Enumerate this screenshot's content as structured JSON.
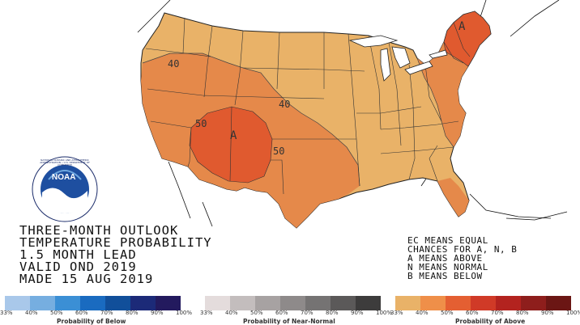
{
  "title_lines": [
    "THREE-MONTH OUTLOOK",
    "TEMPERATURE PROBABILITY",
    "1.5 MONTH LEAD",
    "VALID OND 2019",
    "MADE 15 AUG 2019"
  ],
  "legend_text": [
    "EC MEANS EQUAL",
    "CHANCES FOR A, N, B",
    "A MEANS ABOVE",
    "N MEANS NORMAL",
    "B MEANS BELOW"
  ],
  "contour_labels": [
    "40",
    "50",
    "40",
    "50",
    "A",
    "A"
  ],
  "logo": {
    "name": "NOAA",
    "ring_text": "NATIONAL OCEANIC AND ATMOSPHERIC ADMINISTRATION • U.S. DEPARTMENT OF COMMERCE"
  },
  "colorbars": [
    {
      "label": "Probability of Below",
      "ticks": [
        "33%",
        "40%",
        "50%",
        "60%",
        "70%",
        "80%",
        "90%",
        "100%"
      ],
      "colors": [
        "#a9c8ea",
        "#76aee0",
        "#3b8fd5",
        "#1a6bc0",
        "#114f9a",
        "#1c2a78",
        "#231a5e"
      ]
    },
    {
      "label": "Probability of Near-Normal",
      "ticks": [
        "33%",
        "40%",
        "50%",
        "60%",
        "70%",
        "80%",
        "90%",
        "100%"
      ],
      "colors": [
        "#e4dcdc",
        "#c3bdbd",
        "#a7a2a2",
        "#8e8a8a",
        "#757373",
        "#5b5959",
        "#3d3c3c"
      ]
    },
    {
      "label": "Probability of Above",
      "ticks": [
        "33%",
        "40%",
        "50%",
        "60%",
        "70%",
        "80%",
        "90%",
        "100%"
      ],
      "colors": [
        "#e9b268",
        "#ef8f49",
        "#e45f32",
        "#d03a27",
        "#b3231f",
        "#8e1e1c",
        "#6b1614"
      ]
    }
  ],
  "category_colors": {
    "above_33_40": "#e9b268",
    "above_40_50": "#e5894a",
    "above_50_60": "#e05a2f"
  }
}
